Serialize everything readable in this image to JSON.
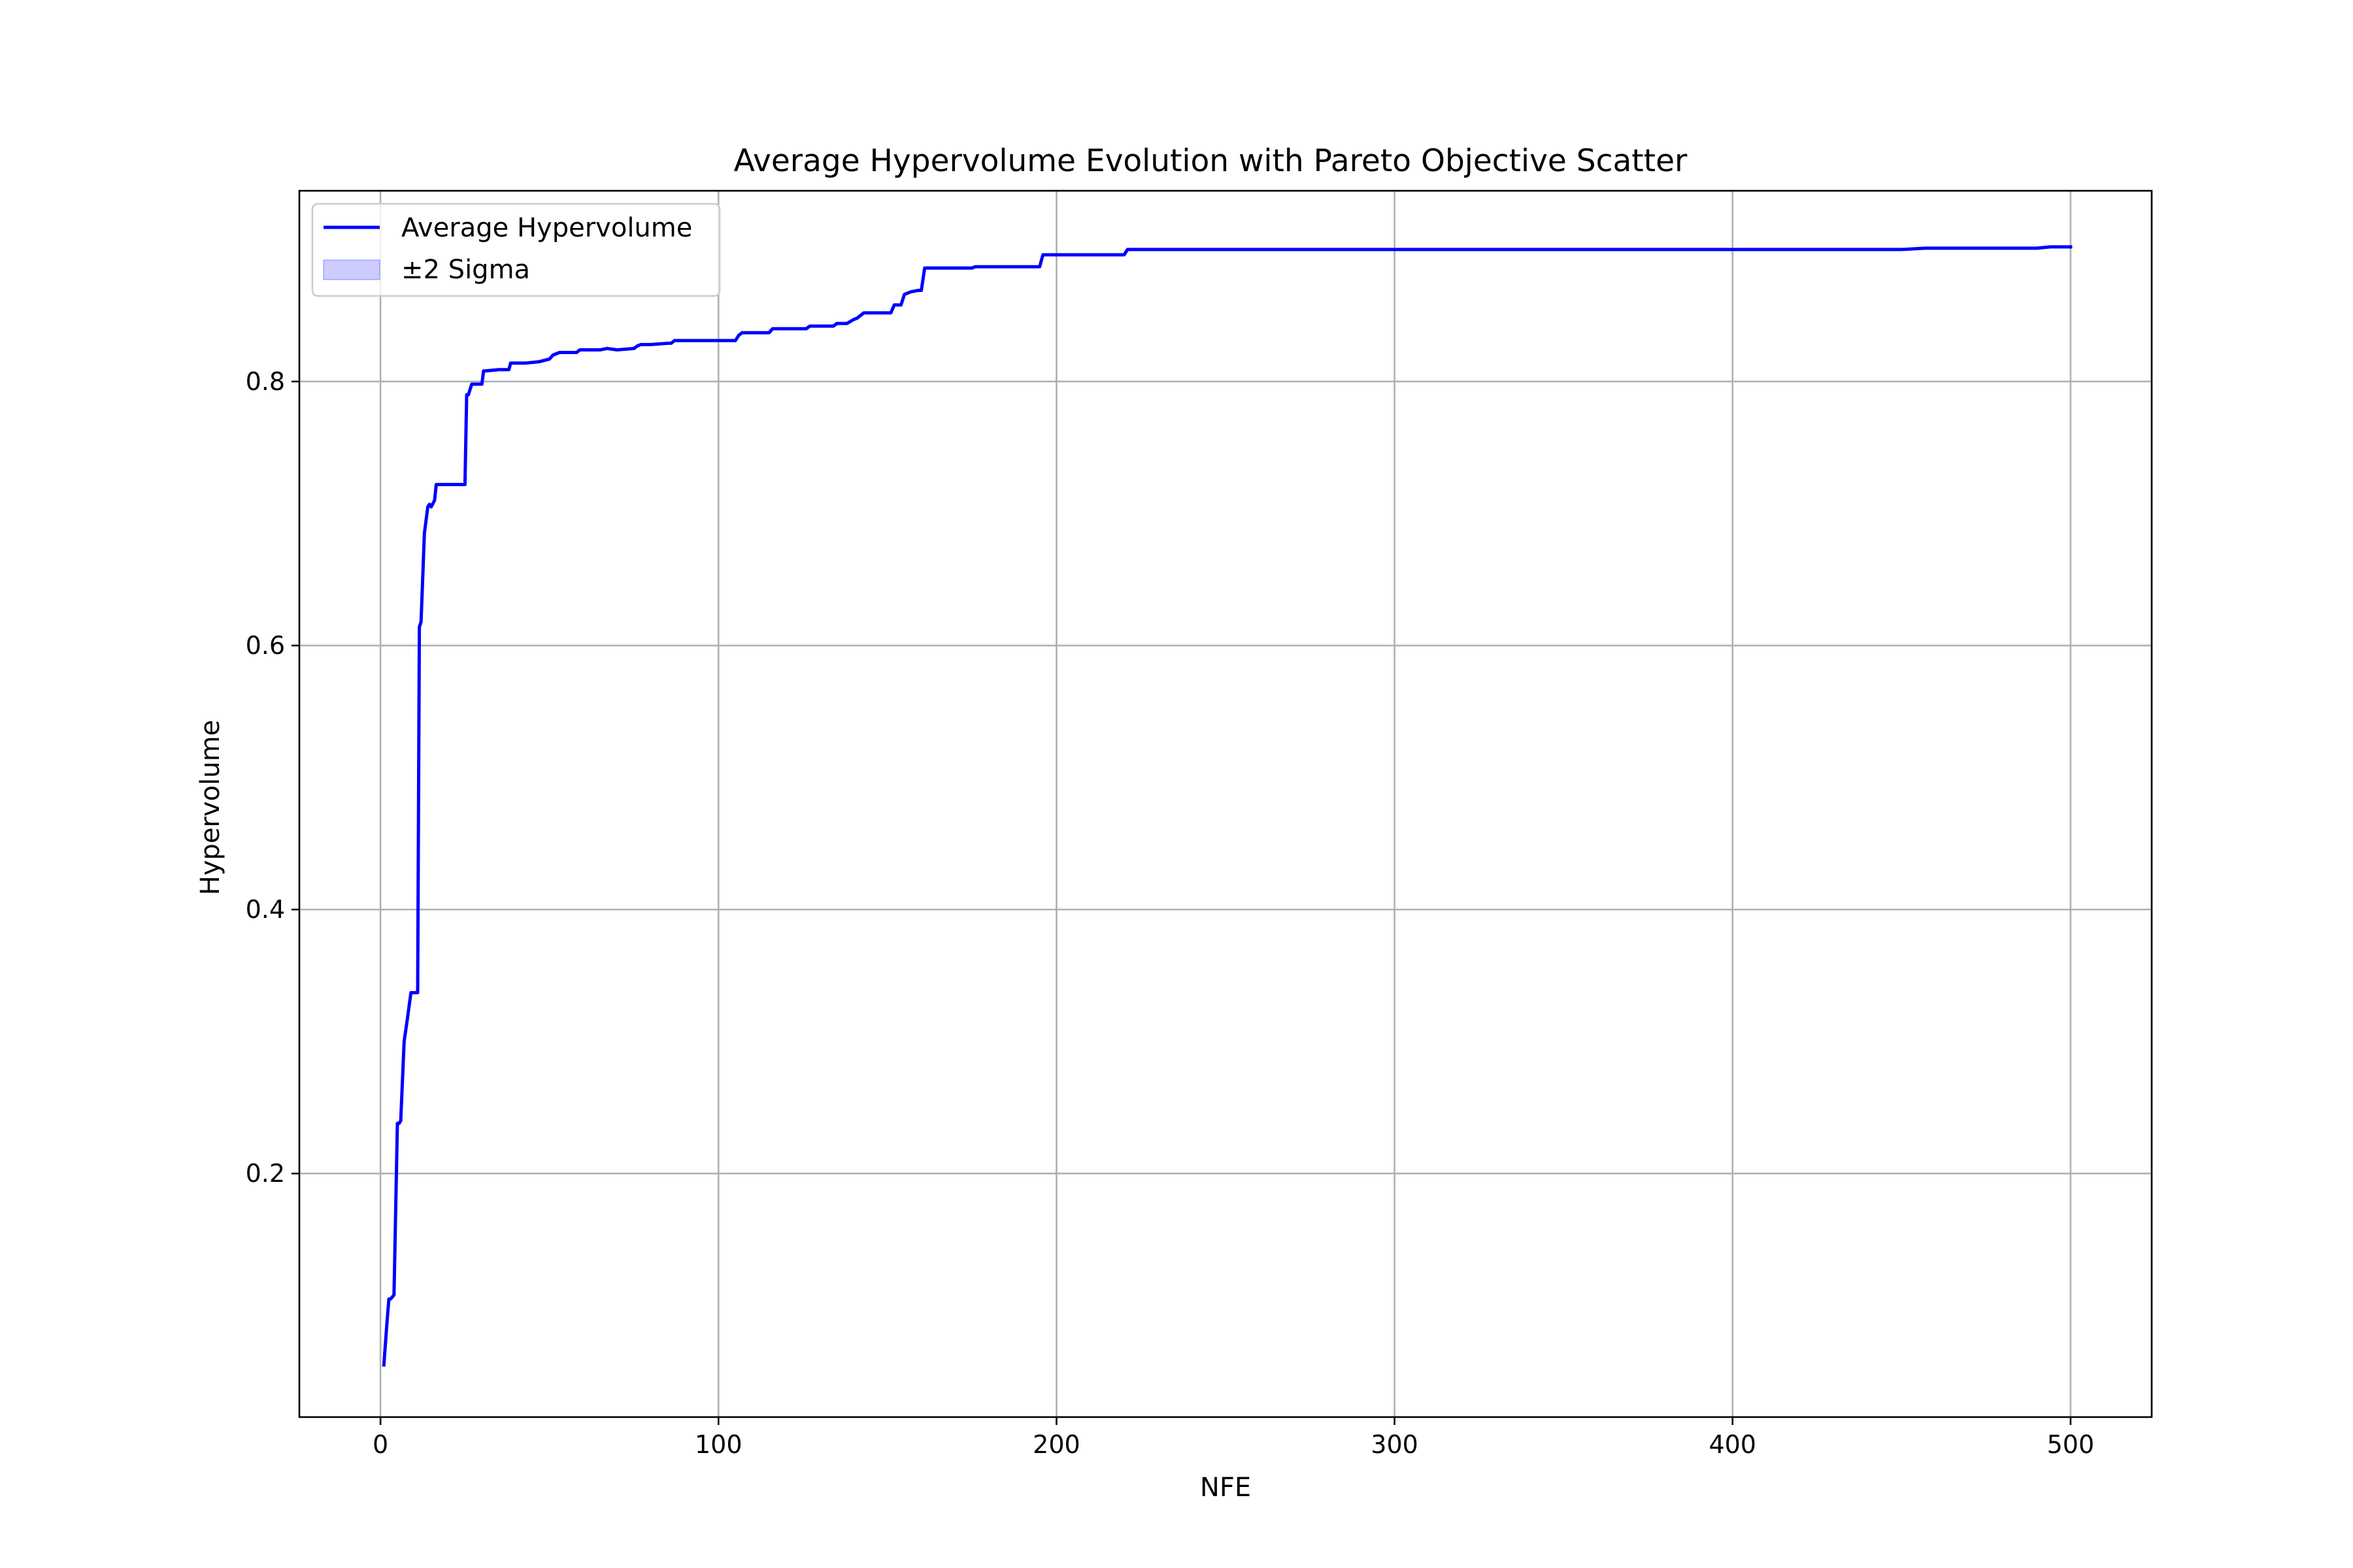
{
  "chart_data": {
    "type": "line",
    "title": "Average Hypervolume Evolution with Pareto Objective Scatter",
    "xlabel": "NFE",
    "ylabel": "Hypervolume",
    "xlim": [
      -24,
      524
    ],
    "ylim": [
      0.0155,
      0.9445
    ],
    "xticks": [
      0,
      100,
      200,
      300,
      400,
      500
    ],
    "yticks": [
      0.2,
      0.4,
      0.6,
      0.8
    ],
    "xtick_labels": [
      "0",
      "100",
      "200",
      "300",
      "400",
      "500"
    ],
    "ytick_labels": [
      "0.2",
      "0.4",
      "0.6",
      "0.8"
    ],
    "grid": true,
    "legend_position": "upper-left",
    "series": [
      {
        "name": "Average Hypervolume",
        "color": "#0000ff",
        "x": [
          1,
          2,
          2.5,
          3,
          4,
          5,
          5.5,
          6,
          7,
          8,
          9,
          9.5,
          10,
          11,
          11.5,
          12,
          13,
          14,
          14.5,
          15,
          16,
          16.5,
          17,
          18,
          19,
          20,
          21,
          22,
          23,
          24,
          25,
          25.5,
          26,
          27,
          28,
          29,
          30,
          30.5,
          31,
          35,
          37,
          38,
          38.5,
          40,
          43,
          47,
          50,
          51,
          52,
          53,
          55,
          58,
          59,
          62,
          65,
          67,
          70,
          75,
          76,
          77,
          80,
          85,
          86,
          87,
          92,
          100,
          105,
          106,
          107,
          110,
          115,
          116,
          117,
          120,
          126,
          127,
          130,
          134,
          135,
          138,
          140,
          141,
          142,
          143,
          147,
          150,
          151,
          152,
          153,
          154,
          155,
          157,
          159,
          160,
          161,
          170,
          175,
          176,
          185,
          195,
          196,
          200,
          208,
          220,
          221,
          250,
          280,
          300,
          350,
          400,
          450,
          457,
          470,
          480,
          490,
          494,
          500
        ],
        "y": [
          0.055,
          0.09,
          0.105,
          0.105,
          0.108,
          0.238,
          0.238,
          0.24,
          0.3,
          0.318,
          0.337,
          0.337,
          0.337,
          0.337,
          0.614,
          0.618,
          0.685,
          0.705,
          0.707,
          0.705,
          0.71,
          0.722,
          0.722,
          0.722,
          0.722,
          0.722,
          0.722,
          0.722,
          0.722,
          0.722,
          0.722,
          0.79,
          0.79,
          0.798,
          0.798,
          0.798,
          0.798,
          0.808,
          0.808,
          0.809,
          0.809,
          0.809,
          0.814,
          0.814,
          0.814,
          0.815,
          0.817,
          0.82,
          0.821,
          0.822,
          0.822,
          0.822,
          0.824,
          0.824,
          0.824,
          0.825,
          0.824,
          0.825,
          0.827,
          0.828,
          0.828,
          0.829,
          0.829,
          0.831,
          0.831,
          0.831,
          0.831,
          0.835,
          0.837,
          0.837,
          0.837,
          0.84,
          0.84,
          0.84,
          0.84,
          0.842,
          0.842,
          0.842,
          0.844,
          0.844,
          0.847,
          0.848,
          0.85,
          0.852,
          0.852,
          0.852,
          0.852,
          0.858,
          0.858,
          0.858,
          0.866,
          0.868,
          0.869,
          0.869,
          0.886,
          0.886,
          0.886,
          0.887,
          0.887,
          0.887,
          0.896,
          0.896,
          0.896,
          0.896,
          0.9,
          0.9,
          0.9,
          0.9,
          0.9,
          0.9,
          0.9,
          0.901,
          0.901,
          0.901,
          0.901,
          0.902,
          0.902
        ]
      },
      {
        "name": "±2 Sigma",
        "color": "#0000ff",
        "fill_opacity": 0.2
      }
    ]
  }
}
